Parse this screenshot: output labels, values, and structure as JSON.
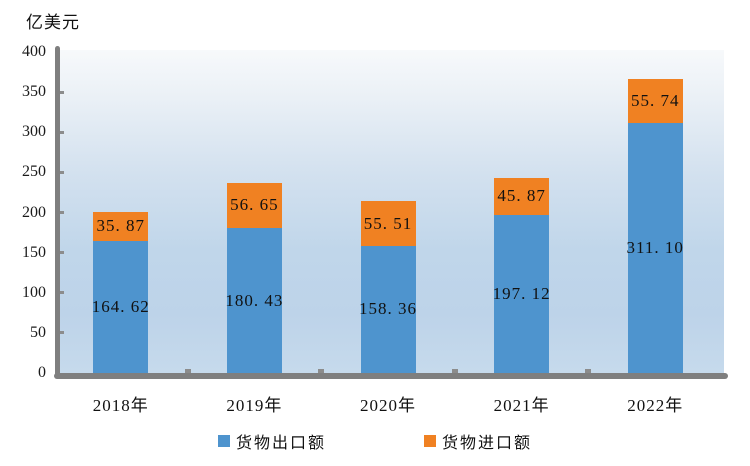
{
  "title": "亿美元",
  "legend": {
    "items": [
      {
        "label": "货物出口额",
        "color": "#4e94ce"
      },
      {
        "label": "货物进口额",
        "color": "#f08122"
      }
    ],
    "position": "bottom"
  },
  "chart_data": {
    "type": "bar",
    "stacked": true,
    "title": "",
    "unit_label": "亿美元",
    "categories": [
      "2018年",
      "2019年",
      "2020年",
      "2021年",
      "2022年"
    ],
    "series": [
      {
        "name": "货物出口额",
        "color": "#4e94ce",
        "values": [
          164.62,
          180.43,
          158.36,
          197.12,
          311.1
        ],
        "value_labels": [
          "164. 62",
          "180. 43",
          "158. 36",
          "197. 12",
          "311. 10"
        ]
      },
      {
        "name": "货物进口额",
        "color": "#f08122",
        "values": [
          35.87,
          56.65,
          55.51,
          45.87,
          55.74
        ],
        "value_labels": [
          "35. 87",
          "56. 65",
          "55. 51",
          "45. 87",
          "55. 74"
        ]
      }
    ],
    "xlabel": "",
    "ylabel": "亿美元",
    "ylim": [
      0,
      400
    ],
    "yticks": [
      0,
      50,
      100,
      150,
      200,
      250,
      300,
      350,
      400
    ],
    "grid": false,
    "legend_position": "bottom",
    "axis_color": "#7f7f7f",
    "plot_bg_gradient": [
      "#f7f9fb",
      "#bdd3e9"
    ]
  }
}
